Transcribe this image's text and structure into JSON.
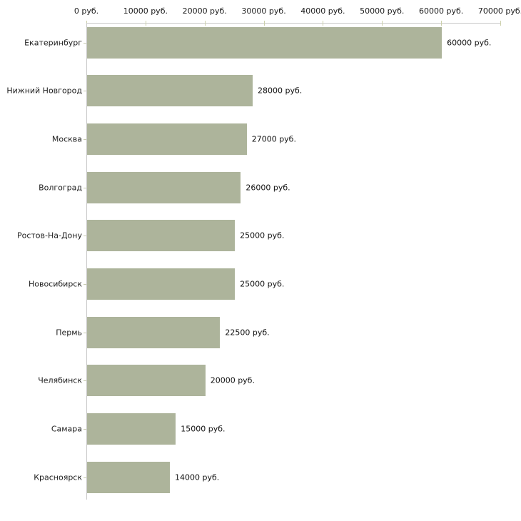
{
  "chart_data": {
    "type": "bar",
    "orientation": "horizontal",
    "title": "",
    "xlabel": "",
    "ylabel": "",
    "categories": [
      "Екатеринбург",
      "Нижний Новгород",
      "Москва",
      "Волгоград",
      "Ростов-На-Дону",
      "Новосибирск",
      "Пермь",
      "Челябинск",
      "Самара",
      "Красноярск"
    ],
    "values": [
      60000,
      28000,
      27000,
      26000,
      25000,
      25000,
      22500,
      20000,
      15000,
      14000
    ],
    "value_labels": [
      "60000 руб.",
      "28000 руб.",
      "27000 руб.",
      "26000 руб.",
      "25000 руб.",
      "25000 руб.",
      "22500 руб.",
      "20000 руб.",
      "15000 руб.",
      "14000 руб."
    ],
    "xlim": [
      0,
      70000
    ],
    "x_ticks": [
      0,
      10000,
      20000,
      30000,
      40000,
      50000,
      60000,
      70000
    ],
    "x_tick_labels": [
      "0 руб.",
      "10000 руб.",
      "20000 руб.",
      "30000 руб.",
      "40000 руб.",
      "50000 руб.",
      "60000 руб.",
      "70000 руб."
    ],
    "grid": false,
    "legend": false,
    "axis_position": "top",
    "colors": {
      "bar": "#adb49b",
      "axis_line": "#c9c9c9",
      "tick_mark": "#ccd0ab",
      "text": "#1c1c1c",
      "background": "#ffffff"
    }
  }
}
